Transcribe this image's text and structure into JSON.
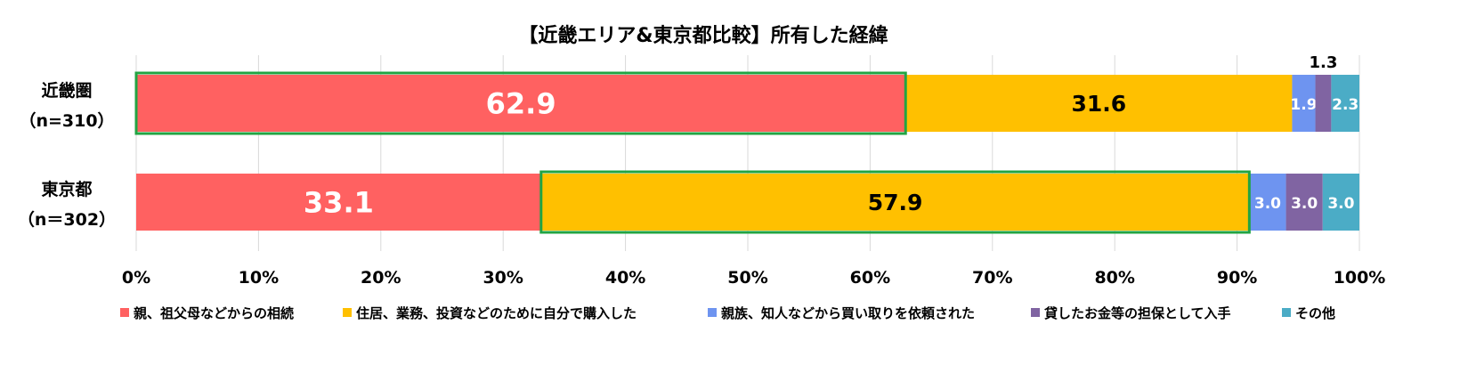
{
  "chart_data": {
    "type": "bar",
    "orientation": "horizontal",
    "stacked": true,
    "title": "【近畿エリア&東京都比較】所有した経緯",
    "categories": [
      {
        "name": "近畿圏",
        "n": "（n=310）"
      },
      {
        "name": "東京都",
        "n": "（n＝302）"
      }
    ],
    "series": [
      {
        "name": "親、祖父母などからの相続",
        "color": "#FF6161",
        "values": [
          62.9,
          33.1
        ],
        "labels": [
          "62.9",
          "33.1"
        ]
      },
      {
        "name": "住居、業務、投資などのために自分で購入した",
        "color": "#FFC000",
        "values": [
          31.6,
          57.9
        ],
        "labels": [
          "31.6",
          "57.9"
        ]
      },
      {
        "name": "親族、知人などから買い取りを依頼された",
        "color": "#6E94F0",
        "values": [
          1.9,
          3.0
        ],
        "labels": [
          "1.9",
          "3.0"
        ]
      },
      {
        "name": "貸したお金等の担保として入手",
        "color": "#8064A2",
        "values": [
          1.3,
          3.0
        ],
        "labels": [
          "1.3",
          "3.0"
        ]
      },
      {
        "name": "その他",
        "color": "#4BACC6",
        "values": [
          2.3,
          3.0
        ],
        "labels": [
          "2.3",
          "3.0"
        ]
      }
    ],
    "highlight": [
      {
        "row": 0,
        "series": 0
      },
      {
        "row": 1,
        "series": 1
      }
    ],
    "highlight_color": "#22A443",
    "xlim": [
      0,
      100
    ],
    "xticks": [
      "0%",
      "10%",
      "20%",
      "30%",
      "40%",
      "50%",
      "60%",
      "70%",
      "80%",
      "90%",
      "100%"
    ],
    "grid": true,
    "legend": "bottom"
  }
}
